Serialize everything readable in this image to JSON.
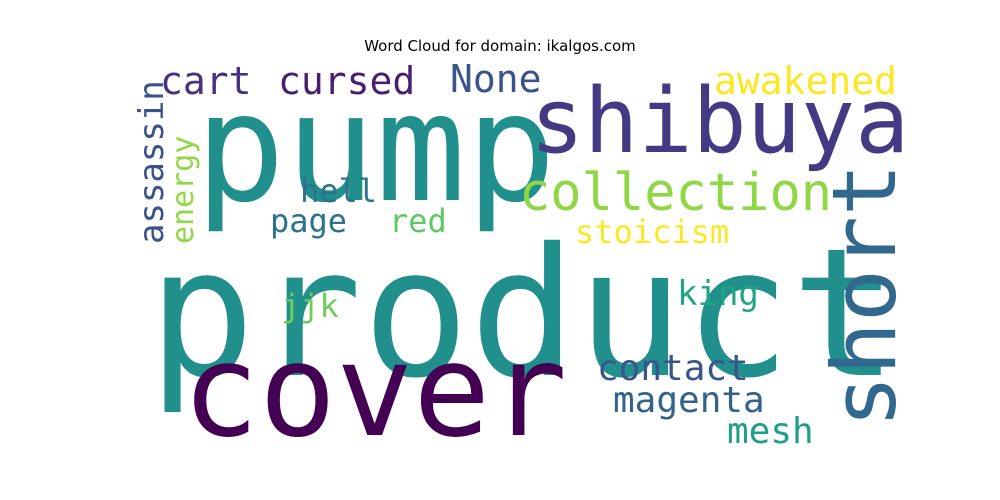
{
  "title": "Word Cloud for domain: ikalgos.com",
  "words": [
    {
      "text": "product",
      "color": "#21908d"
    },
    {
      "text": "pump",
      "color": "#21908d"
    },
    {
      "text": "cover",
      "color": "#440154"
    },
    {
      "text": "shibuya",
      "color": "#443a83"
    },
    {
      "text": "short",
      "color": "#31688e"
    },
    {
      "text": "collection",
      "color": "#8fd744"
    },
    {
      "text": "awakened",
      "color": "#fde725"
    },
    {
      "text": "None",
      "color": "#3b528b"
    },
    {
      "text": "cursed",
      "color": "#481f70"
    },
    {
      "text": "cart",
      "color": "#46327e"
    },
    {
      "text": "assassin",
      "color": "#3b528b"
    },
    {
      "text": "energy",
      "color": "#8fd744"
    },
    {
      "text": "hell",
      "color": "#2c728e"
    },
    {
      "text": "page",
      "color": "#2c728e"
    },
    {
      "text": "red",
      "color": "#5ec962"
    },
    {
      "text": "stoicism",
      "color": "#fde725"
    },
    {
      "text": "jjk",
      "color": "#6ccd5a"
    },
    {
      "text": "king",
      "color": "#20a486"
    },
    {
      "text": "contact",
      "color": "#39568c"
    },
    {
      "text": "magenta",
      "color": "#33638d"
    },
    {
      "text": "mesh",
      "color": "#1f9e89"
    }
  ]
}
